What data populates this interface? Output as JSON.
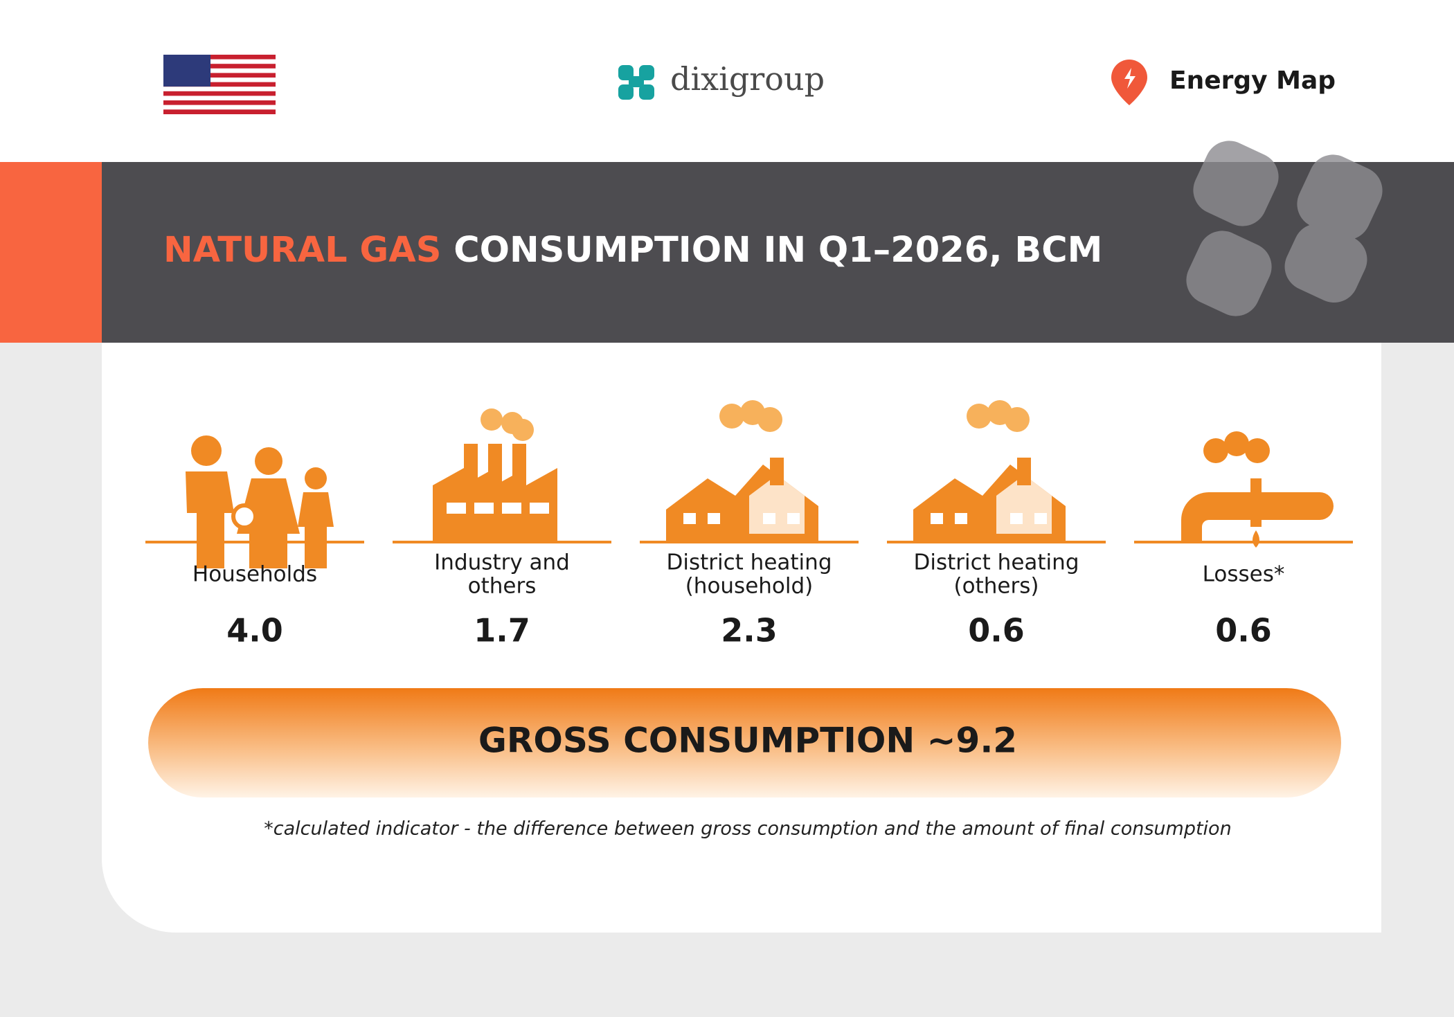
{
  "header": {
    "brand": "dixigroup",
    "product": "Energy Map"
  },
  "title": {
    "highlight": "NATURAL GAS",
    "rest": "CONSUMPTION IN Q1–2026, BCM"
  },
  "items": [
    {
      "label": [
        "Households"
      ],
      "value": "4.0"
    },
    {
      "label": [
        "Industry and",
        "others"
      ],
      "value": "1.7"
    },
    {
      "label": [
        "District heating",
        "(household)"
      ],
      "value": "2.3"
    },
    {
      "label": [
        "District heating",
        "(others)"
      ],
      "value": "0.6"
    },
    {
      "label": [
        "Losses*"
      ],
      "value": "0.6"
    }
  ],
  "total": "GROSS CONSUMPTION ~9.2",
  "footnote": "*calculated indicator - the difference between gross consumption and the amount of final consumption"
}
